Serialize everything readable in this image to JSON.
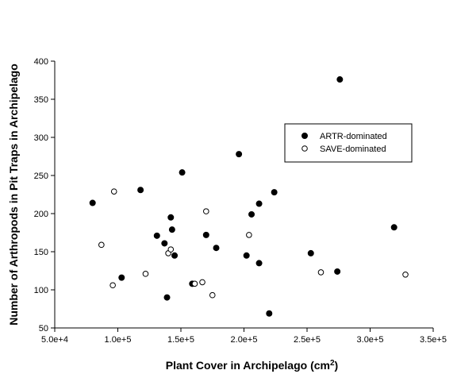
{
  "chart_data": {
    "type": "scatter",
    "title": "",
    "xlabel": "Plant Cover in Archipelago (cm",
    "xlabel_superscript": "2",
    "xlabel_suffix": ")",
    "ylabel": "Number of Arthropods in Pit Traps in Archipelago",
    "xlim": [
      50000,
      350000
    ],
    "ylim": [
      50,
      400
    ],
    "x_ticks": [
      50000,
      100000,
      150000,
      200000,
      250000,
      300000,
      350000
    ],
    "x_tick_labels": [
      "5.0e+4",
      "1.0e+5",
      "1.5e+5",
      "2.0e+5",
      "2.5e+5",
      "3.0e+5",
      "3.5e+5"
    ],
    "y_ticks": [
      50,
      100,
      150,
      200,
      250,
      300,
      350,
      400
    ],
    "y_tick_labels": [
      "50",
      "100",
      "150",
      "200",
      "250",
      "300",
      "350",
      "400"
    ],
    "grid": false,
    "legend_position": "upper-right",
    "series": [
      {
        "name": "ARTR-dominated",
        "marker": "filled-circle",
        "color": "#000000",
        "points": [
          {
            "x": 80000,
            "y": 214
          },
          {
            "x": 103000,
            "y": 116
          },
          {
            "x": 118000,
            "y": 231
          },
          {
            "x": 131000,
            "y": 171
          },
          {
            "x": 137000,
            "y": 161
          },
          {
            "x": 139000,
            "y": 90
          },
          {
            "x": 142000,
            "y": 195
          },
          {
            "x": 143000,
            "y": 179
          },
          {
            "x": 145000,
            "y": 145
          },
          {
            "x": 151000,
            "y": 254
          },
          {
            "x": 159000,
            "y": 108
          },
          {
            "x": 170000,
            "y": 172
          },
          {
            "x": 178000,
            "y": 155
          },
          {
            "x": 196000,
            "y": 278
          },
          {
            "x": 202000,
            "y": 145
          },
          {
            "x": 206000,
            "y": 199
          },
          {
            "x": 212000,
            "y": 213
          },
          {
            "x": 212000,
            "y": 135
          },
          {
            "x": 220000,
            "y": 69
          },
          {
            "x": 224000,
            "y": 228
          },
          {
            "x": 253000,
            "y": 148
          },
          {
            "x": 274000,
            "y": 124
          },
          {
            "x": 276000,
            "y": 376
          },
          {
            "x": 319000,
            "y": 182
          }
        ]
      },
      {
        "name": "SAVE-dominated",
        "marker": "open-circle",
        "color": "#000000",
        "points": [
          {
            "x": 87000,
            "y": 159
          },
          {
            "x": 96000,
            "y": 106
          },
          {
            "x": 97000,
            "y": 229
          },
          {
            "x": 122000,
            "y": 121
          },
          {
            "x": 140000,
            "y": 148
          },
          {
            "x": 142000,
            "y": 153
          },
          {
            "x": 161000,
            "y": 108
          },
          {
            "x": 167000,
            "y": 110
          },
          {
            "x": 170000,
            "y": 203
          },
          {
            "x": 175000,
            "y": 93
          },
          {
            "x": 204000,
            "y": 172
          },
          {
            "x": 261000,
            "y": 123
          },
          {
            "x": 328000,
            "y": 120
          }
        ]
      }
    ]
  }
}
